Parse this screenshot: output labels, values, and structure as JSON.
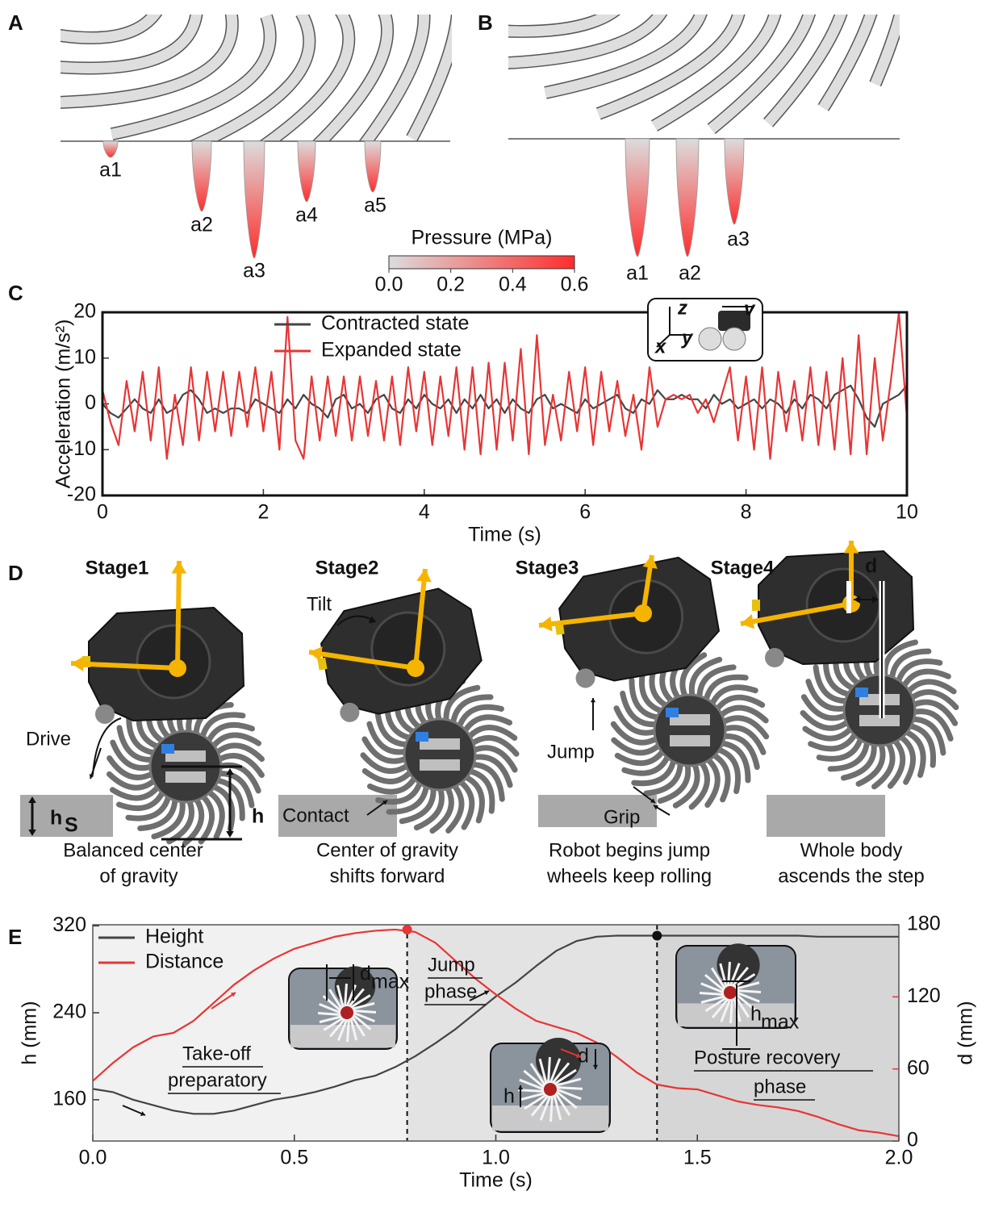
{
  "panel_labels": [
    "A",
    "B",
    "C",
    "D",
    "E"
  ],
  "panel_a": {
    "labels": [
      "a1",
      "a2",
      "a3",
      "a4",
      "a5"
    ]
  },
  "panel_b": {
    "labels": [
      "a1",
      "a2",
      "a3"
    ]
  },
  "colorbar": {
    "label": "Pressure (MPa)",
    "lim": [
      0,
      0.6
    ],
    "ticks": [
      {
        "value": 0,
        "label": "0.0"
      },
      0.2,
      0.4,
      0.6
    ],
    "colors": [
      "#dcdcdc",
      "#ff2d2d"
    ]
  },
  "panel_c_inset": {
    "labels": [
      "z",
      "y",
      "x",
      "v"
    ]
  },
  "panel_d": {
    "stages": [
      "Stage1",
      "Stage2",
      "Stage3",
      "Stage4"
    ],
    "captions": [
      [
        "Balanced center",
        "of gravity"
      ],
      [
        "Center of gravity",
        "shifts forward"
      ],
      [
        "Robot begins jump",
        "wheels keep rolling"
      ],
      [
        "Whole body",
        "ascends the step"
      ]
    ],
    "annotations": {
      "drive": "Drive",
      "hs": "h",
      "hs_sub": "S",
      "h": "h",
      "tilt": "Tilt",
      "contact": "Contact",
      "jump": "Jump",
      "grip": "Grip",
      "d": "d"
    }
  },
  "panel_e_annotations": {
    "takeoff": [
      "Take-off",
      "preparatory"
    ],
    "jump": [
      "Jump",
      "phase"
    ],
    "recovery": [
      "Posture recovery",
      "phase"
    ],
    "inset_dmax": [
      "d",
      "max"
    ],
    "inset_hmax": [
      "h",
      "max"
    ],
    "inset_mid": [
      "d",
      "h"
    ]
  },
  "chart_data": [
    {
      "type": "line",
      "xlabel": "Time (s)",
      "ylabel": "Acceleration (m/s²)",
      "xlim": [
        0,
        10
      ],
      "ylim": [
        -20,
        20
      ],
      "xticks": [
        0,
        2,
        4,
        6,
        8,
        10
      ],
      "yticks": [
        -20,
        -10,
        0,
        10,
        20
      ],
      "legend": "upper left",
      "x": [
        0,
        0.1,
        0.2,
        0.3,
        0.4,
        0.5,
        0.6,
        0.7,
        0.8,
        0.9,
        1,
        1.1,
        1.2,
        1.3,
        1.4,
        1.5,
        1.6,
        1.7,
        1.8,
        1.9,
        2,
        2.1,
        2.2,
        2.3,
        2.4,
        2.5,
        2.6,
        2.7,
        2.8,
        2.9,
        3,
        3.1,
        3.2,
        3.3,
        3.4,
        3.5,
        3.6,
        3.7,
        3.8,
        3.9,
        4,
        4.1,
        4.2,
        4.3,
        4.4,
        4.5,
        4.6,
        4.7,
        4.8,
        4.9,
        5,
        5.1,
        5.2,
        5.3,
        5.4,
        5.5,
        5.6,
        5.7,
        5.8,
        5.9,
        6,
        6.1,
        6.2,
        6.3,
        6.4,
        6.5,
        6.6,
        6.7,
        6.8,
        6.9,
        7,
        7.1,
        7.2,
        7.3,
        7.4,
        7.5,
        7.6,
        7.7,
        7.8,
        7.9,
        8,
        8.1,
        8.2,
        8.3,
        8.4,
        8.5,
        8.6,
        8.7,
        8.8,
        8.9,
        9,
        9.1,
        9.2,
        9.3,
        9.4,
        9.5,
        9.6,
        9.7,
        9.8,
        9.9,
        10
      ],
      "series": [
        {
          "name": "Contracted state",
          "color": "#444444",
          "values": [
            0,
            -2,
            -3,
            -1,
            1,
            -1,
            -2,
            1,
            -2,
            -1,
            2,
            3,
            1,
            -2,
            -1,
            -2,
            -1,
            -1,
            -2,
            1,
            0,
            -1,
            -2,
            1,
            -1,
            2,
            0,
            -1,
            -3,
            1,
            2,
            -1,
            0,
            -2,
            1,
            2,
            -1,
            -2,
            1,
            -1,
            2,
            0,
            -1,
            1,
            -2,
            1,
            -1,
            2,
            -1,
            1,
            -2,
            1,
            -1,
            -2,
            1,
            2,
            -1,
            0,
            -1,
            -2,
            1,
            -1,
            0,
            1,
            2,
            -1,
            -2,
            1,
            0,
            3,
            1,
            1,
            2,
            1,
            1,
            -1,
            2,
            0,
            1,
            -1,
            0,
            1,
            -1,
            1,
            0,
            -2,
            1,
            -1,
            2,
            1,
            -1,
            2,
            3,
            4,
            1,
            -3,
            -5,
            0,
            1,
            2,
            4
          ]
        },
        {
          "name": "Expanded state",
          "color": "#e83535",
          "values": [
            3,
            -4,
            -9,
            5,
            -6,
            7,
            -8,
            8,
            -12,
            2,
            -9,
            8,
            -8,
            7,
            -6,
            7,
            -7,
            7,
            -5,
            8,
            -6,
            7,
            -10,
            19,
            -8,
            -12,
            6,
            -8,
            6,
            -7,
            6,
            -8,
            6,
            -7,
            5,
            -8,
            6,
            -9,
            8,
            -6,
            7,
            -9,
            6,
            -7,
            8,
            -10,
            8,
            -11,
            9,
            -10,
            9,
            -8,
            12,
            -11,
            15,
            -9,
            2,
            -8,
            7,
            -6,
            8,
            -9,
            7,
            -6,
            5,
            -7,
            2,
            -10,
            8,
            -5,
            1,
            2,
            1,
            2,
            -2,
            1,
            -4,
            2,
            8,
            -8,
            6,
            -10,
            8,
            -12,
            7,
            -6,
            5,
            -8,
            8,
            -9,
            7,
            -10,
            10,
            -11,
            15,
            -11,
            10,
            -8,
            5,
            20,
            -3
          ]
        }
      ]
    },
    {
      "type": "line",
      "xlabel": "Time (s)",
      "ylabel": "h (mm)",
      "y2label": "d (mm)",
      "y2color": "#e83535",
      "xlim": [
        0,
        2
      ],
      "ylim": [
        122,
        321
      ],
      "y2lim": [
        0,
        180
      ],
      "xticks": [
        {
          "value": 0,
          "label": "0.0"
        },
        0.5,
        {
          "value": 1,
          "label": "1.0"
        },
        1.5,
        {
          "value": 2,
          "label": "2.0"
        }
      ],
      "yticks": [
        160,
        240,
        320
      ],
      "y2ticks": [
        0,
        60,
        120,
        180
      ],
      "legend": "upper left",
      "phase_boundaries": [
        0.78,
        1.4
      ],
      "region_colors": [
        "#f1f1f1",
        "#e3e3e3",
        "#d6d6d6"
      ],
      "markers": [
        {
          "x": 0.78,
          "y": 176,
          "axis": "y2",
          "color": "#e83535"
        },
        {
          "x": 1.4,
          "y": 311,
          "axis": "y",
          "color": "#111111"
        }
      ],
      "x": [
        0,
        0.05,
        0.1,
        0.15,
        0.2,
        0.25,
        0.3,
        0.35,
        0.4,
        0.45,
        0.5,
        0.55,
        0.6,
        0.65,
        0.7,
        0.75,
        0.8,
        0.85,
        0.9,
        0.95,
        1,
        1.05,
        1.1,
        1.15,
        1.2,
        1.25,
        1.3,
        1.35,
        1.4,
        1.45,
        1.5,
        1.55,
        1.6,
        1.65,
        1.7,
        1.75,
        1.8,
        1.85,
        1.9,
        1.95,
        2
      ],
      "series": [
        {
          "name": "Height",
          "color": "#444444",
          "axis": "y",
          "values": [
            170,
            167,
            160,
            155,
            150,
            147,
            147,
            150,
            155,
            160,
            163,
            167,
            172,
            178,
            182,
            190,
            200,
            212,
            225,
            240,
            255,
            268,
            283,
            297,
            306,
            310,
            311,
            311,
            311,
            311,
            311,
            311,
            311,
            311,
            311,
            311,
            310,
            310,
            310,
            310,
            310
          ]
        },
        {
          "name": "Distance",
          "color": "#e83535",
          "axis": "y2",
          "values": [
            50,
            65,
            78,
            87,
            90,
            100,
            115,
            130,
            142,
            152,
            160,
            165,
            170,
            173,
            175,
            176,
            174,
            165,
            150,
            135,
            122,
            110,
            100,
            95,
            90,
            82,
            70,
            57,
            47,
            44,
            43,
            38,
            33,
            30,
            28,
            25,
            20,
            14,
            9,
            7,
            4
          ]
        }
      ]
    }
  ]
}
